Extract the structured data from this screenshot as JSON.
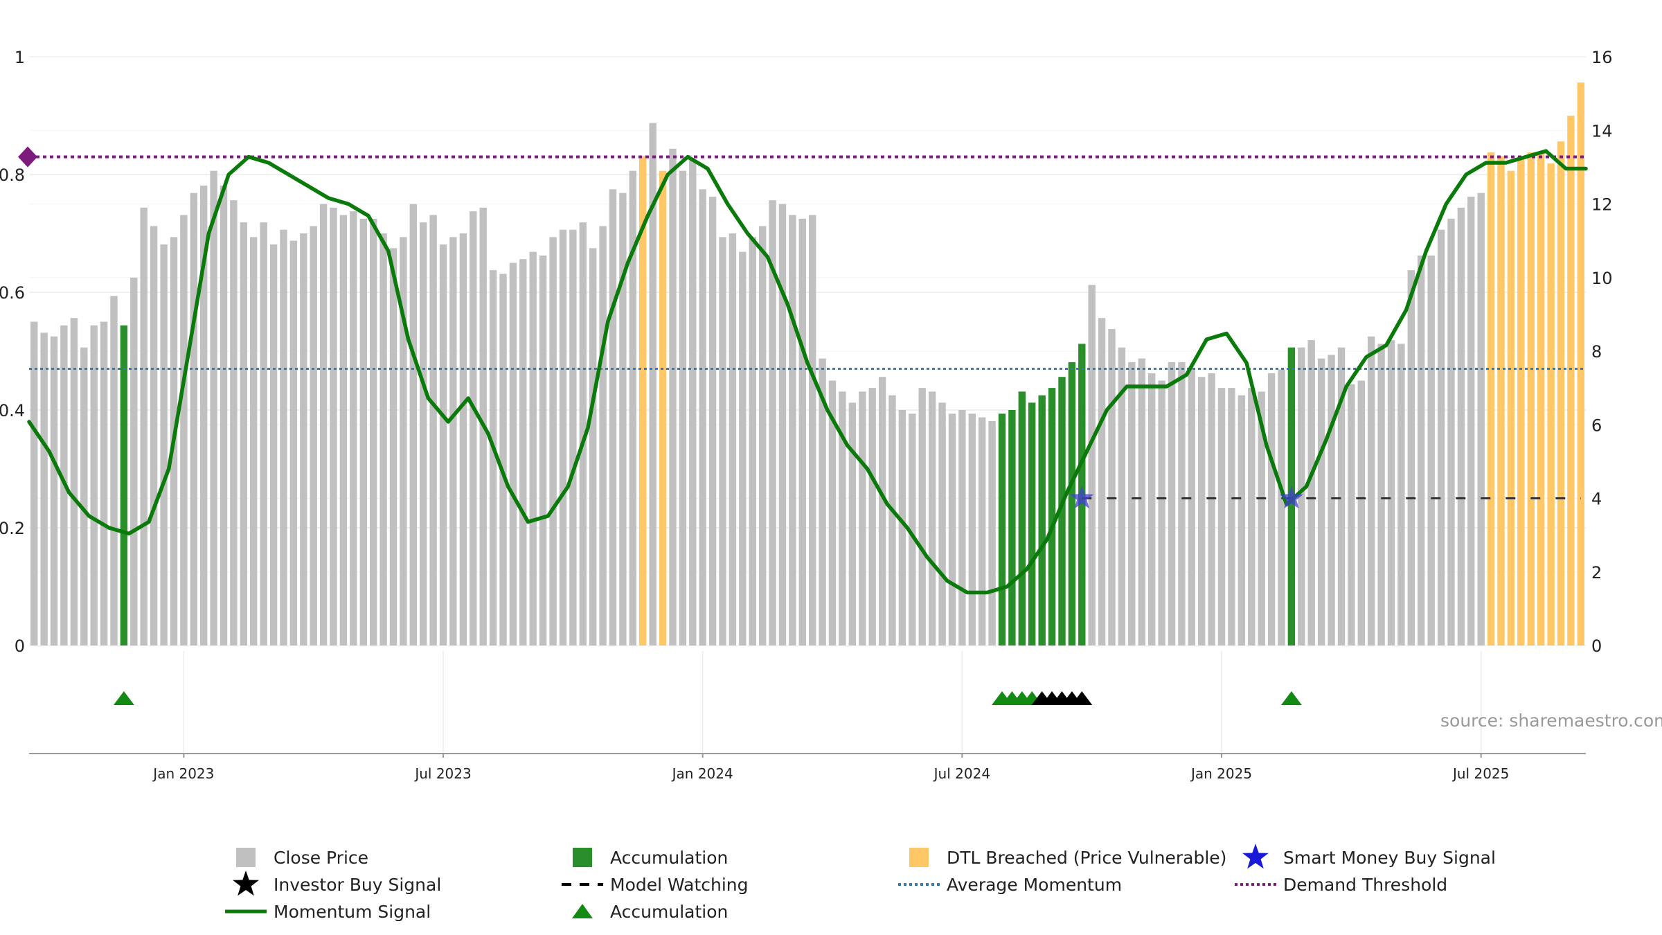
{
  "colors": {
    "close": "#c0c0c0",
    "accumulation": "#2a8f2a",
    "dtl": "#ffc766",
    "momentum": "#0a7a0a",
    "average": "#3a78a8",
    "demand": "#7d1a7d",
    "watch": "#333333",
    "smart_money": "#4040d0",
    "triangle_green": "#138a13",
    "triangle_black": "#000000",
    "grid": "#ebebeb",
    "axis": "#999999"
  },
  "source_text": "source: sharemaestro.com",
  "chart_data": {
    "type": "bar",
    "left_axis": {
      "ticks": [
        "0",
        "0.2",
        "0.4",
        "0.6",
        "0.8",
        "1"
      ],
      "range": [
        0,
        1
      ]
    },
    "right_axis": {
      "ticks": [
        "0",
        "2",
        "4",
        "6",
        "8",
        "10",
        "12",
        "14",
        "16"
      ],
      "range": [
        0,
        16
      ]
    },
    "x_axis": {
      "range_weeks": [
        0,
        156
      ],
      "ticks": [
        {
          "label": "Jan 2023",
          "week": 15
        },
        {
          "label": "Jul 2023",
          "week": 41
        },
        {
          "label": "Jan 2024",
          "week": 67
        },
        {
          "label": "Jul 2024",
          "week": 93
        },
        {
          "label": "Jan 2025",
          "week": 119
        },
        {
          "label": "Jul 2025",
          "week": 145
        }
      ]
    },
    "close_prices": [
      8.8,
      8.5,
      8.4,
      8.7,
      8.9,
      8.1,
      8.7,
      8.8,
      9.5,
      8.7,
      10.0,
      11.9,
      11.4,
      10.9,
      11.1,
      11.7,
      12.3,
      12.5,
      12.9,
      12.5,
      12.1,
      11.5,
      11.1,
      11.5,
      10.9,
      11.3,
      11.0,
      11.2,
      11.4,
      12.0,
      11.9,
      11.7,
      11.8,
      11.6,
      11.6,
      11.2,
      10.8,
      11.1,
      12.0,
      11.5,
      11.7,
      10.9,
      11.1,
      11.2,
      11.8,
      11.9,
      10.2,
      10.1,
      10.4,
      10.5,
      10.7,
      10.6,
      11.1,
      11.3,
      11.3,
      11.5,
      10.8,
      11.4,
      12.4,
      12.3,
      12.9,
      13.3,
      14.2,
      12.9,
      13.5,
      12.9,
      13.2,
      12.4,
      12.2,
      11.1,
      11.2,
      10.7,
      11.1,
      11.4,
      12.1,
      12.0,
      11.7,
      11.6,
      11.7,
      7.8,
      7.2,
      6.9,
      6.6,
      6.9,
      7.0,
      7.3,
      6.8,
      6.4,
      6.3,
      7.0,
      6.9,
      6.6,
      6.3,
      6.4,
      6.3,
      6.2,
      6.1,
      6.3,
      6.4,
      6.9,
      6.6,
      6.8,
      7.0,
      7.3,
      7.7,
      8.2,
      9.8,
      8.9,
      8.6,
      8.1,
      7.7,
      7.8,
      7.4,
      7.2,
      7.7,
      7.7,
      7.5,
      7.3,
      7.4,
      7.0,
      7.0,
      6.8,
      7.0,
      6.9,
      7.4,
      7.5,
      8.1,
      8.1,
      8.3,
      7.8,
      7.9,
      8.1,
      7.1,
      7.2,
      8.4,
      8.2,
      8.3,
      8.2,
      10.2,
      10.6,
      10.6,
      11.3,
      11.6,
      11.9,
      12.2,
      12.3,
      13.4,
      13.3,
      12.9,
      13.3,
      13.4,
      13.4,
      13.1,
      13.7,
      14.4,
      15.3
    ],
    "accumulation_weeks": [
      9,
      97,
      98,
      99,
      100,
      101,
      102,
      103,
      104,
      105,
      126
    ],
    "dtl_weeks": [
      61,
      63,
      146,
      147,
      148,
      149,
      150,
      151,
      152,
      153,
      154,
      155
    ],
    "momentum_signal": [
      [
        0,
        0.38
      ],
      [
        2,
        0.33
      ],
      [
        4,
        0.26
      ],
      [
        6,
        0.22
      ],
      [
        8,
        0.2
      ],
      [
        10,
        0.19
      ],
      [
        12,
        0.21
      ],
      [
        14,
        0.3
      ],
      [
        16,
        0.5
      ],
      [
        18,
        0.7
      ],
      [
        20,
        0.8
      ],
      [
        22,
        0.83
      ],
      [
        24,
        0.82
      ],
      [
        26,
        0.8
      ],
      [
        28,
        0.78
      ],
      [
        30,
        0.76
      ],
      [
        32,
        0.75
      ],
      [
        34,
        0.73
      ],
      [
        36,
        0.67
      ],
      [
        38,
        0.52
      ],
      [
        40,
        0.42
      ],
      [
        42,
        0.38
      ],
      [
        44,
        0.42
      ],
      [
        46,
        0.36
      ],
      [
        48,
        0.27
      ],
      [
        50,
        0.21
      ],
      [
        52,
        0.22
      ],
      [
        54,
        0.27
      ],
      [
        56,
        0.37
      ],
      [
        58,
        0.55
      ],
      [
        60,
        0.65
      ],
      [
        62,
        0.73
      ],
      [
        64,
        0.8
      ],
      [
        66,
        0.83
      ],
      [
        68,
        0.81
      ],
      [
        70,
        0.75
      ],
      [
        72,
        0.7
      ],
      [
        74,
        0.66
      ],
      [
        76,
        0.58
      ],
      [
        78,
        0.48
      ],
      [
        80,
        0.4
      ],
      [
        82,
        0.34
      ],
      [
        84,
        0.3
      ],
      [
        86,
        0.24
      ],
      [
        88,
        0.2
      ],
      [
        90,
        0.15
      ],
      [
        92,
        0.11
      ],
      [
        94,
        0.09
      ],
      [
        96,
        0.09
      ],
      [
        98,
        0.1
      ],
      [
        100,
        0.13
      ],
      [
        102,
        0.18
      ],
      [
        104,
        0.26
      ],
      [
        106,
        0.33
      ],
      [
        108,
        0.4
      ],
      [
        110,
        0.44
      ],
      [
        112,
        0.44
      ],
      [
        114,
        0.44
      ],
      [
        116,
        0.46
      ],
      [
        118,
        0.52
      ],
      [
        120,
        0.53
      ],
      [
        122,
        0.48
      ],
      [
        124,
        0.34
      ],
      [
        126,
        0.24
      ],
      [
        128,
        0.27
      ],
      [
        130,
        0.35
      ],
      [
        132,
        0.44
      ],
      [
        134,
        0.49
      ],
      [
        136,
        0.51
      ],
      [
        138,
        0.57
      ],
      [
        140,
        0.67
      ],
      [
        142,
        0.75
      ],
      [
        144,
        0.8
      ],
      [
        146,
        0.82
      ],
      [
        148,
        0.82
      ],
      [
        150,
        0.83
      ],
      [
        152,
        0.84
      ],
      [
        154,
        0.81
      ],
      [
        156,
        0.81
      ]
    ],
    "average_momentum": 0.47,
    "demand_threshold": 0.83,
    "model_watching": [
      {
        "from": 105,
        "to": 156,
        "value": 4
      }
    ],
    "smart_money_buy_weeks": [
      105,
      126
    ],
    "accumulation_triangle_weeks": [
      9,
      97,
      98,
      99,
      100,
      126
    ],
    "investor_buy_weeks": [
      101,
      102,
      103,
      104,
      105
    ],
    "legend": [
      {
        "label": "Close Price",
        "symbol": "square",
        "color": "#c0c0c0"
      },
      {
        "label": "Accumulation",
        "symbol": "square",
        "color": "#2a8f2a"
      },
      {
        "label": "DTL Breached (Price Vulnerable)",
        "symbol": "square",
        "color": "#ffc766"
      },
      {
        "label": "Smart Money Buy Signal",
        "symbol": "star",
        "color": "#1a1ad6"
      },
      {
        "label": "Investor Buy Signal",
        "symbol": "star",
        "color": "#000000"
      },
      {
        "label": "Model Watching",
        "symbol": "dashed",
        "color": "#000000"
      },
      {
        "label": "Average Momentum",
        "symbol": "dotted",
        "color": "#3a78a8"
      },
      {
        "label": "Demand Threshold",
        "symbol": "dotted",
        "color": "#7d1a7d"
      },
      {
        "label": "Momentum Signal",
        "symbol": "line",
        "color": "#0a7a0a"
      },
      {
        "label": "Accumulation",
        "symbol": "triangle",
        "color": "#138a13"
      }
    ]
  }
}
